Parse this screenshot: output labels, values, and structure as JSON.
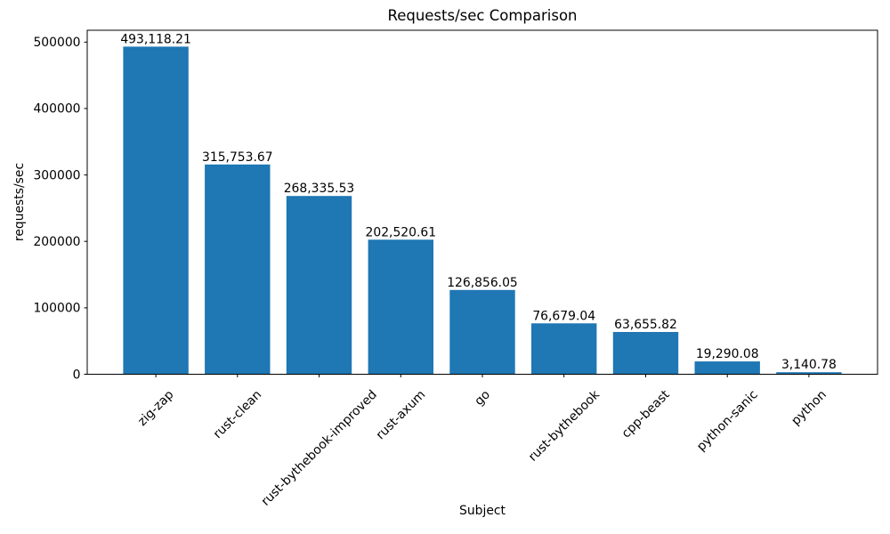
{
  "figure": {
    "background": "#ffffff",
    "text_color": "#000000"
  },
  "chart_data": {
    "type": "bar",
    "title": "Requests/sec Comparison",
    "xlabel": "Subject",
    "ylabel": "requests/sec",
    "categories": [
      "zig-zap",
      "rust-clean",
      "rust-bythebook-improved",
      "rust-axum",
      "go",
      "rust-bythebook",
      "cpp-beast",
      "python-sanic",
      "python"
    ],
    "values": [
      493118.21,
      315753.67,
      268335.53,
      202520.61,
      126856.05,
      76679.04,
      63655.82,
      19290.08,
      3140.78
    ],
    "value_labels": [
      "493,118.21",
      "315,753.67",
      "268,335.53",
      "202,520.61",
      "126,856.05",
      "76,679.04",
      "63,655.82",
      "19,290.08",
      "3,140.78"
    ],
    "bar_color": "#1f77b4",
    "ylim": [
      0,
      517774
    ],
    "yticks": [
      0,
      100000,
      200000,
      300000,
      400000,
      500000
    ],
    "ytick_labels": [
      "0",
      "100000",
      "200000",
      "300000",
      "400000",
      "500000"
    ],
    "xtick_rotation": 45,
    "grid": false,
    "legend": null
  }
}
